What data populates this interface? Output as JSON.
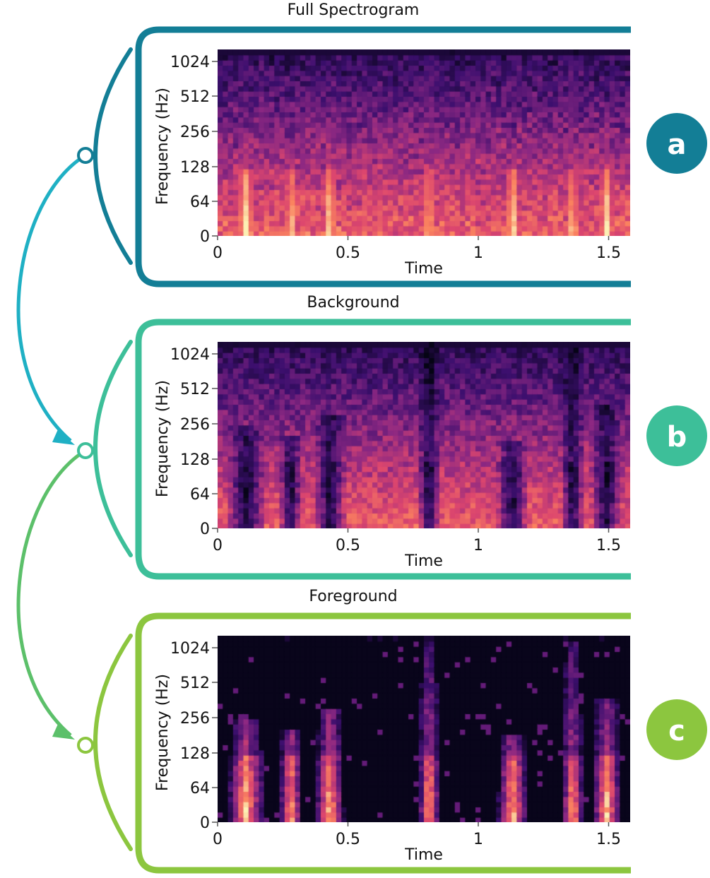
{
  "panels": [
    {
      "id": "a",
      "title": "Full Spectrogram",
      "badge": "a",
      "color": "#137e96",
      "kind": "full"
    },
    {
      "id": "b",
      "title": "Background",
      "badge": "b",
      "color": "#3dbf99",
      "kind": "background"
    },
    {
      "id": "c",
      "title": "Foreground",
      "badge": "c",
      "color": "#8cc63f",
      "kind": "foreground"
    }
  ],
  "axes": {
    "ylabel": "Frequency (Hz)",
    "xlabel": "Time",
    "yticks": [
      "0",
      "64",
      "128",
      "256",
      "512",
      "1024"
    ],
    "xticks": [
      "0",
      "0.5",
      "1",
      "1.5"
    ]
  },
  "chart_data": {
    "type": "heatmap",
    "colormap": "magma",
    "x_range_seconds": [
      0,
      1.58
    ],
    "y_scale": "mel",
    "y_range_hz": [
      0,
      1200
    ]
  },
  "flow_colors": {
    "a_to_b": "#1fb0c4",
    "b_to_c": "#5cc06a"
  }
}
